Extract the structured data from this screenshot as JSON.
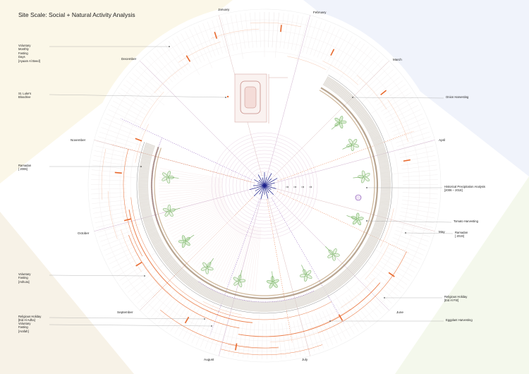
{
  "title": "Site Scale: Social + Natural Activity Analysis",
  "months": [
    "January",
    "February",
    "March",
    "April",
    "May",
    "June",
    "July",
    "August",
    "September",
    "October",
    "November",
    "December"
  ],
  "annotations_left": [
    {
      "id": "ayyam-al-beed",
      "lines": [
        "Voluntary",
        "Monthly",
        "Fasting",
        "Days",
        "[Ayaam Al Beed]"
      ]
    },
    {
      "id": "st-lukes",
      "lines": [
        "St. Luke's",
        "Bloodrive"
      ]
    },
    {
      "id": "ramadan-2006",
      "lines": [
        "Ramadan",
        "[ 2006]"
      ]
    },
    {
      "id": "ashura",
      "lines": [
        "Voluntary",
        "Fasting",
        "[Ashura]"
      ]
    },
    {
      "id": "eid-al-adha",
      "lines": [
        "Religious Holiday",
        "[Eid Al Adha]"
      ]
    },
    {
      "id": "arafah",
      "lines": [
        "Voluntary",
        "Fasting",
        "[Arafah]"
      ]
    }
  ],
  "annotations_right": [
    {
      "id": "onion-harvesting",
      "lines": [
        "Onion Harvesting"
      ]
    },
    {
      "id": "precipitation",
      "lines": [
        "Historical Precipitation Analysis",
        "[2006 – 2018]"
      ]
    },
    {
      "id": "tomato-harvesting",
      "lines": [
        "Tomato Harvesting"
      ]
    },
    {
      "id": "ramadan-2019",
      "lines": [
        "Ramadan",
        "[ 2019]"
      ]
    },
    {
      "id": "eid-al-fitr",
      "lines": [
        "Religious Holiday",
        "[Eid Al Fitr]"
      ]
    },
    {
      "id": "eggplant-harvesting",
      "lines": [
        "Eggplant Harvesting"
      ]
    }
  ],
  "colors": {
    "orange": "#e8692d",
    "light_orange": "#f5c8b0",
    "pink": "#e6a7a7",
    "blue": "#1a1f8a",
    "purple": "#7a3fb0",
    "green": "#6fae5a",
    "brown": "#8a6a4a",
    "gray": "#b8b8b8"
  }
}
